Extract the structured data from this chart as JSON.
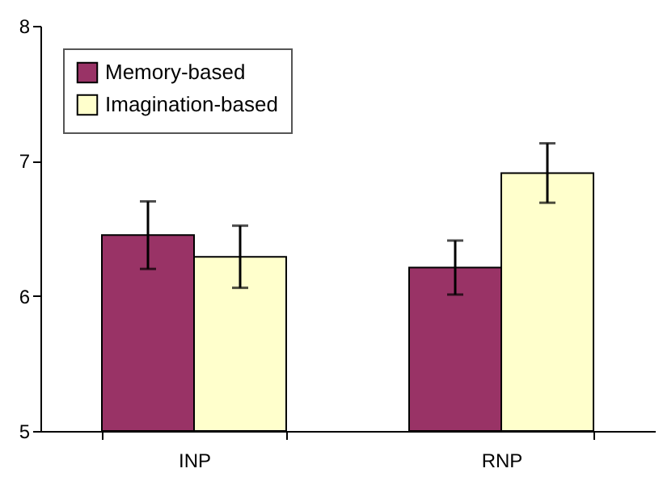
{
  "chart_data": {
    "type": "bar",
    "categories": [
      "INP",
      "RNP"
    ],
    "series": [
      {
        "name": "Memory-based",
        "color": "#993366",
        "values": [
          6.45,
          6.21
        ],
        "errors": [
          0.25,
          0.2
        ]
      },
      {
        "name": "Imagination-based",
        "color": "#ffffcc",
        "values": [
          6.29,
          6.91
        ],
        "errors": [
          0.23,
          0.22
        ]
      }
    ],
    "ylim": [
      5,
      8
    ],
    "yticks": [
      5,
      6,
      7,
      8
    ],
    "grid": false,
    "legend": "top left"
  }
}
